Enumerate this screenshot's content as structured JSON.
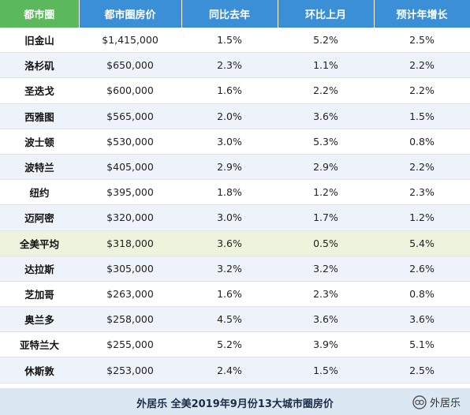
{
  "table": {
    "headers": [
      "都市圈",
      "都市圈房价",
      "同比去年",
      "环比上月",
      "预计年增长"
    ],
    "rows": [
      {
        "city": "旧金山",
        "price": "$1,415,000",
        "yoy": "1.5%",
        "mom": "5.2%",
        "forecast": "2.5%"
      },
      {
        "city": "洛杉矶",
        "price": "$650,000",
        "yoy": "2.3%",
        "mom": "1.1%",
        "forecast": "2.2%"
      },
      {
        "city": "圣迭戈",
        "price": "$600,000",
        "yoy": "1.6%",
        "mom": "2.2%",
        "forecast": "2.2%"
      },
      {
        "city": "西雅图",
        "price": "$565,000",
        "yoy": "2.0%",
        "mom": "3.6%",
        "forecast": "1.5%"
      },
      {
        "city": "波士顿",
        "price": "$530,000",
        "yoy": "3.0%",
        "mom": "5.3%",
        "forecast": "0.8%"
      },
      {
        "city": "波特兰",
        "price": "$405,000",
        "yoy": "2.9%",
        "mom": "2.9%",
        "forecast": "2.2%"
      },
      {
        "city": "纽约",
        "price": "$395,000",
        "yoy": "1.8%",
        "mom": "1.2%",
        "forecast": "2.3%"
      },
      {
        "city": "迈阿密",
        "price": "$320,000",
        "yoy": "3.0%",
        "mom": "1.7%",
        "forecast": "1.2%"
      },
      {
        "city": "全美平均",
        "price": "$318,000",
        "yoy": "3.6%",
        "mom": "0.5%",
        "forecast": "5.4%",
        "highlight": true
      },
      {
        "city": "达拉斯",
        "price": "$305,000",
        "yoy": "3.2%",
        "mom": "3.2%",
        "forecast": "2.6%"
      },
      {
        "city": "芝加哥",
        "price": "$263,000",
        "yoy": "1.6%",
        "mom": "2.3%",
        "forecast": "0.8%"
      },
      {
        "city": "奥兰多",
        "price": "$258,000",
        "yoy": "4.5%",
        "mom": "3.6%",
        "forecast": "3.6%"
      },
      {
        "city": "亚特兰大",
        "price": "$255,000",
        "yoy": "5.2%",
        "mom": "3.9%",
        "forecast": "5.1%"
      },
      {
        "city": "休斯敦",
        "price": "$253,000",
        "yoy": "2.4%",
        "mom": "1.5%",
        "forecast": "2.5%"
      }
    ]
  },
  "caption": "外居乐 全美2019年9月份13大城市圈房价",
  "watermark": {
    "icon": "wechat-official-account-icon",
    "text": "外居乐"
  },
  "colors": {
    "header_first": "#5cb85c",
    "header": "#3a8fd6",
    "row_alt": "#eef3fa",
    "row_highlight": "#eef3dd",
    "caption_bg": "#dbe8f4"
  }
}
